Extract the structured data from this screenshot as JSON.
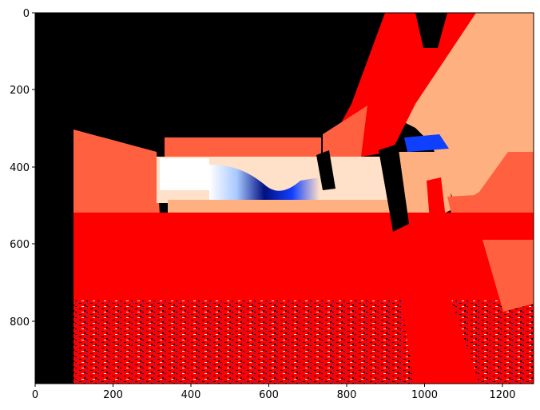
{
  "chart_data": {
    "type": "heatmap",
    "title": "",
    "xlabel": "",
    "ylabel": "",
    "xlim": [
      0,
      1280
    ],
    "ylim": [
      960,
      0
    ],
    "x_ticks": [
      "0",
      "200",
      "400",
      "600",
      "800",
      "1000",
      "1200"
    ],
    "y_ticks": [
      "0",
      "200",
      "400",
      "600",
      "800"
    ],
    "y_axis_inverted": true,
    "grid": false,
    "legend": "none",
    "colormap": "bwr",
    "colors": {
      "background": "#000000",
      "red": "#ff0000",
      "orange_red": "#ff6040",
      "salmon": "#ffb080",
      "light_peach": "#ffe0c8",
      "white": "#ffffff",
      "light_blue": "#a8c8ff",
      "blue": "#1040ff",
      "navy": "#001080",
      "frame": "#000000"
    }
  }
}
